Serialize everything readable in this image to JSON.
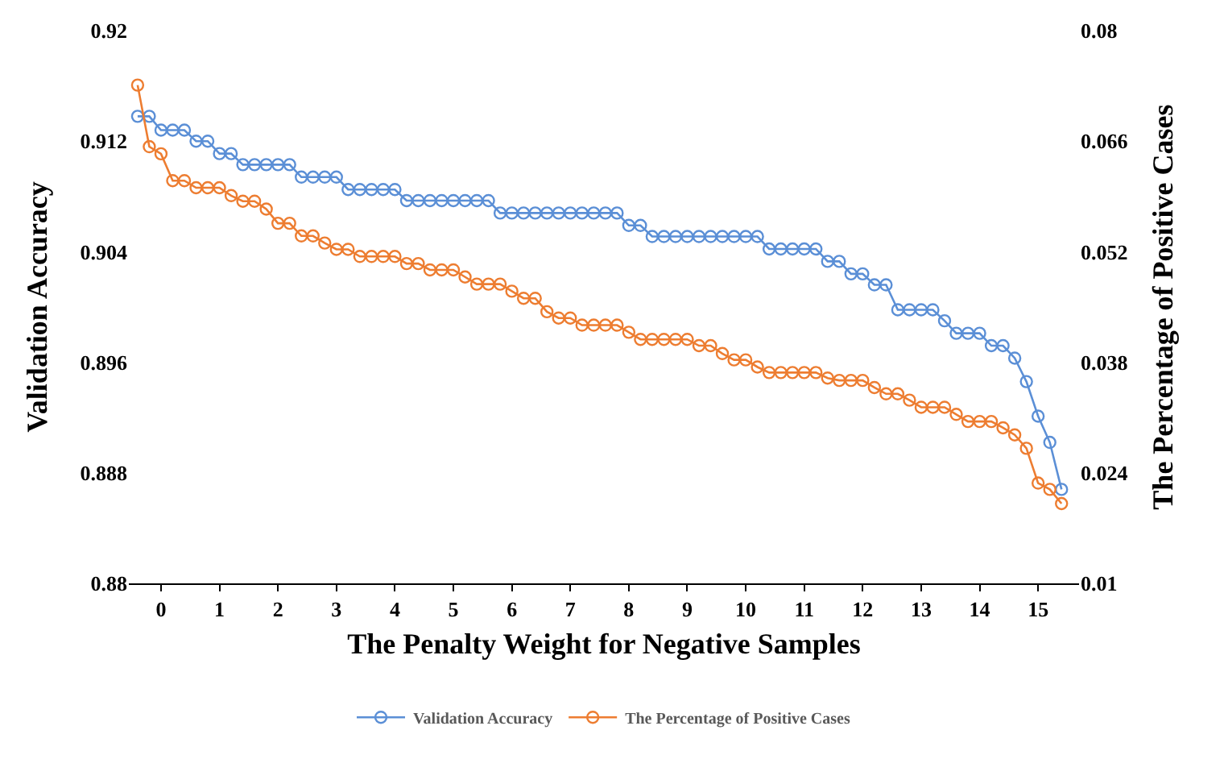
{
  "chart_data": {
    "type": "line",
    "xlabel": "The Penalty Weight for Negative Samples",
    "ylabel": "Validation Accuracy",
    "y2label": "The Percentage of Positive Cases",
    "x": [
      -0.4,
      -0.2,
      0,
      0.2,
      0.4,
      0.6,
      0.8,
      1,
      1.2,
      1.4,
      1.6,
      1.8,
      2,
      2.2,
      2.4,
      2.6,
      2.8,
      3,
      3.2,
      3.4,
      3.6,
      3.8,
      4,
      4.2,
      4.4,
      4.6,
      4.8,
      5,
      5.2,
      5.4,
      5.6,
      5.8,
      6,
      6.2,
      6.4,
      6.6,
      6.8,
      7,
      7.2,
      7.4,
      7.6,
      7.8,
      8,
      8.2,
      8.4,
      8.6,
      8.8,
      9,
      9.2,
      9.4,
      9.6,
      9.8,
      10,
      10.2,
      10.4,
      10.6,
      10.8,
      11,
      11.2,
      11.4,
      11.6,
      11.8,
      12,
      12.2,
      12.4,
      12.6,
      12.8,
      13,
      13.2,
      13.4,
      13.6,
      13.8,
      14,
      14.2,
      14.4,
      14.6,
      14.8,
      15,
      15.2,
      15.4
    ],
    "series": [
      {
        "name": "Validation Accuracy",
        "color": "#5b8fd6",
        "values": [
          0.9138,
          0.9138,
          0.9128,
          0.9128,
          0.9128,
          0.912,
          0.912,
          0.9111,
          0.9111,
          0.9103,
          0.9103,
          0.9103,
          0.9103,
          0.9103,
          0.9094,
          0.9094,
          0.9094,
          0.9094,
          0.9085,
          0.9085,
          0.9085,
          0.9085,
          0.9085,
          0.9077,
          0.9077,
          0.9077,
          0.9077,
          0.9077,
          0.9077,
          0.9077,
          0.9077,
          0.9068,
          0.9068,
          0.9068,
          0.9068,
          0.9068,
          0.9068,
          0.9068,
          0.9068,
          0.9068,
          0.9068,
          0.9068,
          0.9059,
          0.9059,
          0.9051,
          0.9051,
          0.9051,
          0.9051,
          0.9051,
          0.9051,
          0.9051,
          0.9051,
          0.9051,
          0.9051,
          0.9042,
          0.9042,
          0.9042,
          0.9042,
          0.9042,
          0.9033,
          0.9033,
          0.9024,
          0.9024,
          0.9016,
          0.9016,
          0.8998,
          0.8998,
          0.8998,
          0.8998,
          0.899,
          0.8981,
          0.8981,
          0.8981,
          0.8972,
          0.8972,
          0.8963,
          0.8946,
          0.8921,
          0.8902,
          0.8868
        ]
      },
      {
        "name": "The Percentage of Positive Cases",
        "color": "#ed7d31",
        "axis": "y2",
        "values": [
          0.0731,
          0.0653,
          0.0644,
          0.061,
          0.061,
          0.0601,
          0.0601,
          0.0601,
          0.0591,
          0.0584,
          0.0584,
          0.0574,
          0.0556,
          0.0556,
          0.054,
          0.054,
          0.0531,
          0.0523,
          0.0523,
          0.0514,
          0.0514,
          0.0514,
          0.0514,
          0.0505,
          0.0505,
          0.0497,
          0.0497,
          0.0497,
          0.0488,
          0.0479,
          0.0479,
          0.0479,
          0.047,
          0.0461,
          0.0461,
          0.0444,
          0.0436,
          0.0436,
          0.0427,
          0.0427,
          0.0427,
          0.0427,
          0.0418,
          0.0409,
          0.0409,
          0.0409,
          0.0409,
          0.0409,
          0.0401,
          0.0401,
          0.0391,
          0.0383,
          0.0383,
          0.0374,
          0.0367,
          0.0367,
          0.0367,
          0.0367,
          0.0367,
          0.036,
          0.0357,
          0.0357,
          0.0357,
          0.0348,
          0.034,
          0.034,
          0.0332,
          0.0323,
          0.0323,
          0.0323,
          0.0314,
          0.0305,
          0.0305,
          0.0305,
          0.0297,
          0.0288,
          0.0271,
          0.0227,
          0.0219,
          0.0201
        ]
      }
    ],
    "xlim": [
      -0.55,
      15.7
    ],
    "xticks": [
      0,
      1,
      2,
      3,
      4,
      5,
      6,
      7,
      8,
      9,
      10,
      11,
      12,
      13,
      14,
      15
    ],
    "ylim": [
      0.88,
      0.92
    ],
    "yticks": [
      0.88,
      0.888,
      0.896,
      0.904,
      0.912,
      0.92
    ],
    "y2lim": [
      0.01,
      0.08
    ],
    "y2ticks": [
      0.01,
      0.024,
      0.038,
      0.052,
      0.066,
      0.08
    ],
    "legend": "bottom",
    "marker": "circle",
    "line_style": "solid"
  }
}
